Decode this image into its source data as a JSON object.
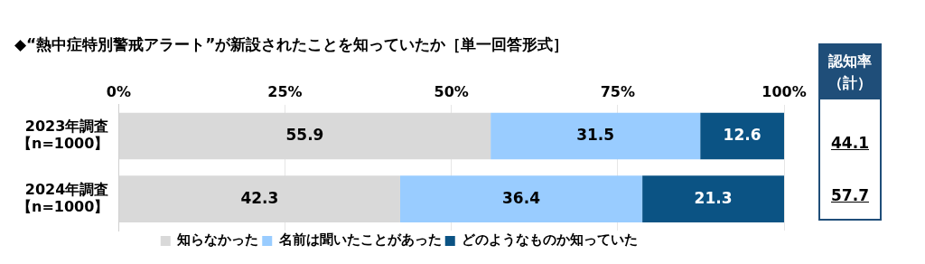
{
  "chart_data": {
    "type": "bar",
    "orientation": "horizontal",
    "stacked": true,
    "title": "◆“熱中症特別警戒アラート”が新設されたことを知っていたか［単一回答形式］",
    "categories": [
      "2023年調査【n=1000】",
      "2024年調査【n=1000】"
    ],
    "series": [
      {
        "name": "知らなかった",
        "color": "#d9d9d9",
        "values": [
          55.9,
          42.3
        ]
      },
      {
        "name": "名前は聞いたことがあった",
        "color": "#99ccff",
        "values": [
          31.5,
          36.4
        ]
      },
      {
        "name": "どのようなものか知っていた",
        "color": "#0b5384",
        "values": [
          12.6,
          21.3
        ]
      }
    ],
    "xlim": [
      0,
      100
    ],
    "xticks": [
      {
        "value": 0,
        "label": "0%"
      },
      {
        "value": 25,
        "label": "25%"
      },
      {
        "value": 50,
        "label": "50%"
      },
      {
        "value": 75,
        "label": "75%"
      },
      {
        "value": 100,
        "label": "100%"
      }
    ],
    "grid": "x",
    "legend": "bottom",
    "data_labels": true,
    "annotations": [
      "認知率（計）",
      "44.1",
      "57.7"
    ]
  }
}
